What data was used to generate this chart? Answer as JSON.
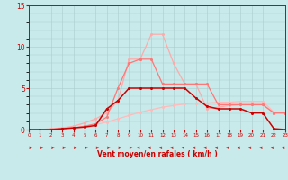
{
  "x": [
    0,
    1,
    2,
    3,
    4,
    5,
    6,
    7,
    8,
    9,
    10,
    11,
    12,
    13,
    14,
    15,
    16,
    17,
    18,
    19,
    20,
    21,
    22,
    23
  ],
  "line_vlight_y": [
    0.0,
    0.0,
    0.05,
    0.1,
    0.2,
    0.4,
    0.6,
    0.9,
    1.3,
    1.7,
    2.1,
    2.4,
    2.7,
    2.9,
    3.1,
    3.2,
    3.2,
    3.3,
    3.3,
    3.4,
    3.4,
    3.4,
    2.1,
    2.0
  ],
  "line_light_y": [
    0.0,
    0.0,
    0.1,
    0.2,
    0.4,
    0.8,
    1.3,
    2.0,
    3.5,
    8.5,
    8.5,
    11.5,
    11.5,
    8.0,
    5.5,
    5.5,
    2.5,
    2.7,
    2.9,
    3.0,
    3.0,
    3.0,
    2.0,
    2.0
  ],
  "line_medium_y": [
    0.0,
    0.0,
    0.05,
    0.1,
    0.2,
    0.4,
    0.7,
    1.5,
    5.0,
    8.0,
    8.5,
    8.5,
    5.5,
    5.5,
    5.5,
    5.5,
    5.5,
    3.0,
    3.0,
    3.0,
    3.0,
    3.0,
    2.0,
    2.0
  ],
  "line_dark_y": [
    0.0,
    0.0,
    0.0,
    0.1,
    0.2,
    0.3,
    0.5,
    2.5,
    3.5,
    5.0,
    5.0,
    5.0,
    5.0,
    5.0,
    5.0,
    3.8,
    2.8,
    2.5,
    2.5,
    2.5,
    2.0,
    2.0,
    0.1,
    0.0
  ],
  "color_vlight": "#ffbbbb",
  "color_light": "#ffaaaa",
  "color_medium": "#ff7777",
  "color_dark": "#cc0000",
  "background": "#c8eaea",
  "grid_color": "#aacccc",
  "xlabel": "Vent moyen/en rafales ( km/h )",
  "ylim": [
    0,
    15
  ],
  "xlim": [
    0,
    23
  ],
  "yticks": [
    0,
    5,
    10,
    15
  ],
  "xticks": [
    0,
    1,
    2,
    3,
    4,
    5,
    6,
    7,
    8,
    9,
    10,
    11,
    12,
    13,
    14,
    15,
    16,
    17,
    18,
    19,
    20,
    21,
    22,
    23
  ],
  "arrows_right": [
    0,
    1,
    2,
    3,
    4,
    5,
    6,
    7,
    8,
    9
  ],
  "arrows_left": [
    10,
    11,
    12,
    13,
    14,
    15,
    16,
    17,
    18,
    19,
    20,
    21,
    22,
    23
  ]
}
